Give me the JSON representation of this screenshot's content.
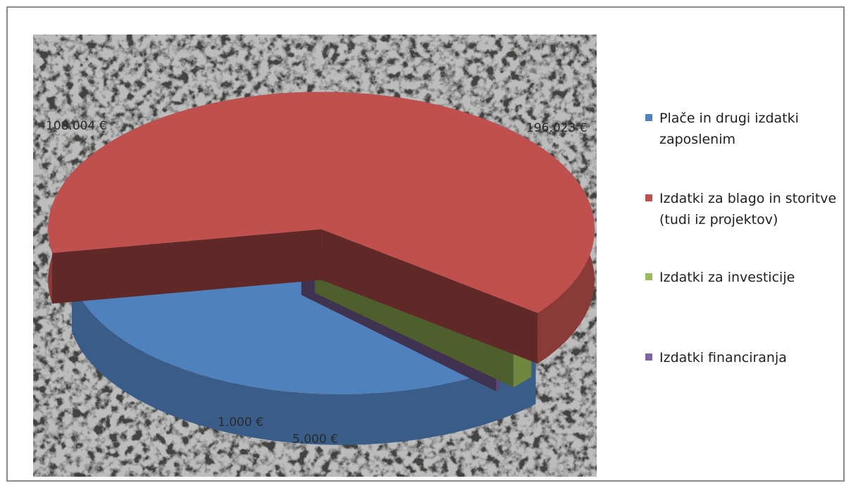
{
  "chart_data": {
    "type": "pie",
    "title": "",
    "categories": [
      "Plače in drugi izdatki zaposlenim",
      "Izdatki za blago in storitve (tudi iz projektov)",
      "Izdatki za investicije",
      "Izdatki financiranja"
    ],
    "values": [
      108004,
      196023,
      5000,
      1000
    ],
    "data_labels": [
      "108.004 €",
      "196.023 €",
      "5.000 €",
      "1.000 €"
    ],
    "colors": [
      "#4f81bd",
      "#c0504d",
      "#9bbb59",
      "#8064a2"
    ],
    "legend_position": "right",
    "style": "3d-exploded"
  }
}
